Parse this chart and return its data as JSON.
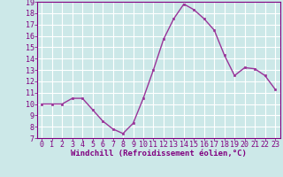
{
  "x": [
    0,
    1,
    2,
    3,
    4,
    5,
    6,
    7,
    8,
    9,
    10,
    11,
    12,
    13,
    14,
    15,
    16,
    17,
    18,
    19,
    20,
    21,
    22,
    23
  ],
  "y": [
    10,
    10,
    10,
    10.5,
    10.5,
    9.5,
    8.5,
    7.8,
    7.4,
    8.3,
    10.5,
    13,
    15.7,
    17.5,
    18.8,
    18.3,
    17.5,
    16.5,
    14.3,
    12.5,
    13.2,
    13.1,
    12.5,
    11.3
  ],
  "line_color": "#993399",
  "marker_color": "#993399",
  "bg_color": "#cce8e8",
  "grid_color": "#ffffff",
  "xlim": [
    -0.5,
    23.5
  ],
  "ylim": [
    7,
    19
  ],
  "yticks": [
    7,
    8,
    9,
    10,
    11,
    12,
    13,
    14,
    15,
    16,
    17,
    18,
    19
  ],
  "xtick_labels": [
    "0",
    "1",
    "2",
    "3",
    "4",
    "5",
    "6",
    "7",
    "8",
    "9",
    "10",
    "11",
    "12",
    "13",
    "14",
    "15",
    "16",
    "17",
    "18",
    "19",
    "20",
    "21",
    "22",
    "23"
  ],
  "xlabel": "Windchill (Refroidissement éolien,°C)",
  "xlabel_fontsize": 6.5,
  "tick_fontsize": 6.0,
  "label_color": "#800080"
}
